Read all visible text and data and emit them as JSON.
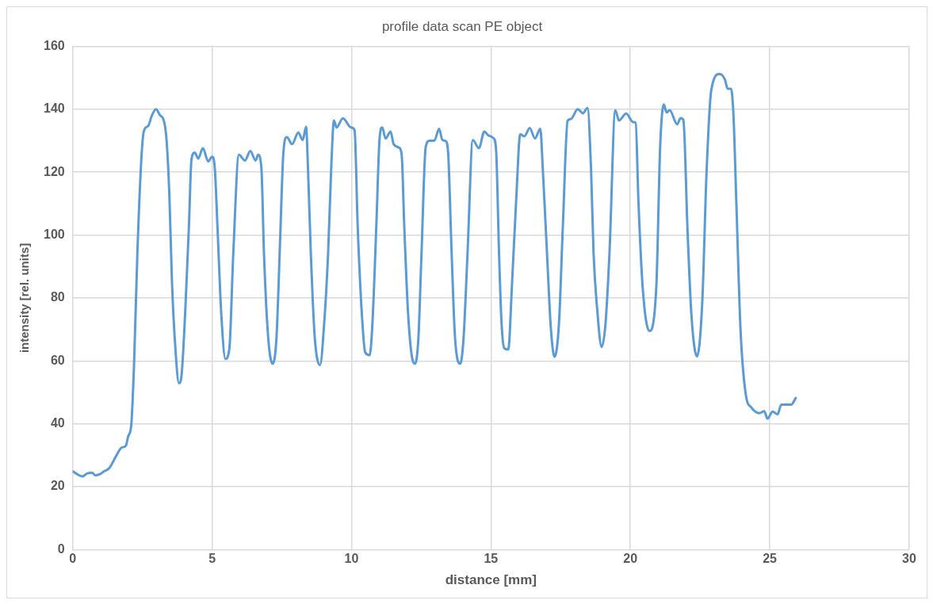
{
  "chart_data": {
    "type": "line",
    "title": "profile data scan PE object",
    "xlabel": "distance [mm]",
    "ylabel": "intensity [rel. units]",
    "xlim": [
      0,
      30
    ],
    "xticks": [
      0,
      5,
      10,
      15,
      20,
      25,
      30
    ],
    "ylim": [
      0,
      160
    ],
    "yticks": [
      0,
      20,
      40,
      60,
      80,
      100,
      120,
      140,
      160
    ],
    "grid": true,
    "legend": false,
    "series": [
      {
        "color": "#5b9bd5",
        "x": [
          0,
          0.36,
          0.51,
          0.7,
          0.81,
          0.98,
          1.13,
          1.32,
          1.56,
          1.75,
          1.91,
          1.99,
          2.1,
          2.2,
          2.32,
          2.47,
          2.56,
          2.71,
          2.83,
          2.99,
          3.12,
          3.28,
          3.37,
          3.47,
          3.56,
          3.69,
          3.81,
          3.9,
          4.04,
          4.17,
          4.26,
          4.38,
          4.5,
          4.67,
          4.86,
          5,
          5.1,
          5.19,
          5.33,
          5.48,
          5.62,
          5.76,
          5.96,
          6.18,
          6.37,
          6.56,
          6.65,
          6.77,
          6.86,
          7.01,
          7.17,
          7.31,
          7.44,
          7.55,
          7.68,
          7.87,
          8.09,
          8.25,
          8.37,
          8.44,
          8.54,
          8.68,
          8.87,
          9.02,
          9.16,
          9.27,
          9.37,
          9.46,
          9.69,
          9.98,
          10.11,
          10.22,
          10.36,
          10.49,
          10.65,
          10.75,
          10.89,
          11,
          11.1,
          11.22,
          11.4,
          11.51,
          11.7,
          11.8,
          11.89,
          12.02,
          12.15,
          12.28,
          12.4,
          12.51,
          12.66,
          12.8,
          12.97,
          13.14,
          13.26,
          13.39,
          13.47,
          13.59,
          13.71,
          13.9,
          14.02,
          14.16,
          14.35,
          14.57,
          14.76,
          14.92,
          15.1,
          15.19,
          15.29,
          15.38,
          15.48,
          15.62,
          15.76,
          15.91,
          16.05,
          16.2,
          16.39,
          16.58,
          16.77,
          16.86,
          17.01,
          17.15,
          17.28,
          17.44,
          17.58,
          17.75,
          17.87,
          18.11,
          18.3,
          18.46,
          18.59,
          18.68,
          18.81,
          18.97,
          19.11,
          19.25,
          19.46,
          19.59,
          19.85,
          20.1,
          20.19,
          20.29,
          20.44,
          20.68,
          20.93,
          21.07,
          21.2,
          21.3,
          21.41,
          21.68,
          21.8,
          21.9,
          22.05,
          22.19,
          22.39,
          22.58,
          22.73,
          22.9,
          23.2,
          23.39,
          23.49,
          23.61,
          23.7,
          23.8,
          23.95,
          24.14,
          24.34,
          24.63,
          24.8,
          24.92,
          25.1,
          25.28,
          25.41,
          25.77,
          25.93
        ],
        "values": [
          24.9,
          23.3,
          24.2,
          24.4,
          23.6,
          24,
          24.9,
          26,
          29.8,
          32.4,
          33.1,
          36,
          39.6,
          58.7,
          94.2,
          125.3,
          133.3,
          134.7,
          137.8,
          140,
          138.2,
          136,
          129.8,
          112,
          85.3,
          63.1,
          52.9,
          55.1,
          76.4,
          103.1,
          124,
          126.2,
          124.3,
          127.6,
          123.4,
          124.9,
          120.9,
          103.1,
          74.7,
          60.6,
          64,
          94.2,
          125.5,
          123.7,
          126.7,
          123.7,
          125.5,
          120.9,
          94.2,
          67.6,
          59.1,
          67.6,
          98.7,
          125.3,
          131.1,
          128.9,
          132.6,
          130.2,
          134.4,
          120.9,
          94.2,
          67.6,
          58.7,
          72,
          94.2,
          120.9,
          136.4,
          134.2,
          137.1,
          134.2,
          133.3,
          103.1,
          76.4,
          62.7,
          61.8,
          72,
          103.1,
          129.8,
          134.2,
          130.7,
          132.9,
          128.9,
          127.8,
          125.3,
          103.1,
          76.4,
          62.2,
          59.1,
          67.6,
          94.2,
          128,
          130,
          130,
          133.8,
          130.2,
          129.8,
          125.3,
          94.2,
          67.6,
          59.1,
          67.6,
          94.2,
          130.2,
          127.6,
          132.9,
          131.6,
          130.7,
          126.2,
          94.2,
          72,
          64,
          63.6,
          85.3,
          112,
          132,
          131.4,
          134,
          130.7,
          133.8,
          120.9,
          94.2,
          70.2,
          61.3,
          72,
          103.1,
          136.4,
          136.9,
          140,
          138.7,
          140.4,
          120.9,
          94.2,
          76.4,
          64.4,
          72,
          94.2,
          139.7,
          136.4,
          138.6,
          135.9,
          135.7,
          110.5,
          83.5,
          69.5,
          83.5,
          128.5,
          141.5,
          139,
          139.7,
          135.2,
          137.2,
          136.6,
          101.5,
          74.5,
          61.4,
          79,
          119.5,
          146,
          151.2,
          149.4,
          146.5,
          146.5,
          137.5,
          110.5,
          70,
          49.3,
          45.2,
          43.4,
          44,
          41.6,
          43.9,
          43,
          46.1,
          46.1,
          48.2
        ]
      }
    ]
  }
}
